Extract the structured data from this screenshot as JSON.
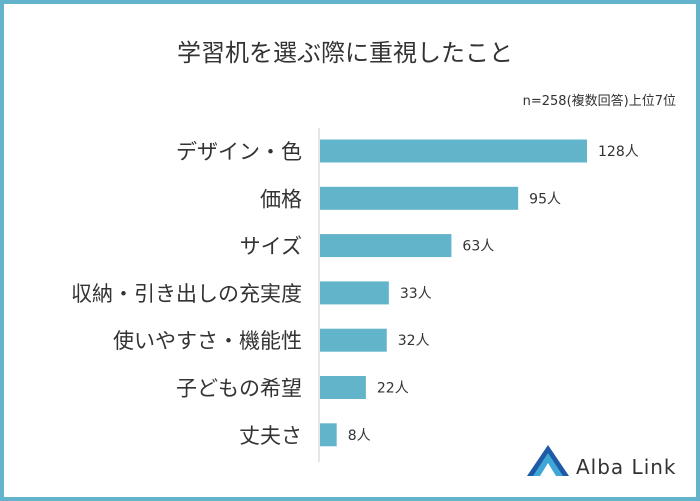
{
  "chart_data": {
    "type": "bar",
    "orientation": "horizontal",
    "title": "学習机を選ぶ際に重視したこと",
    "subtitle": "n=258(複数回答)上位7位",
    "categories": [
      "デザイン・色",
      "価格",
      "サイズ",
      "収納・引き出しの充実度",
      "使いやすさ・機能性",
      "子どもの希望",
      "丈夫さ"
    ],
    "values": [
      128,
      95,
      63,
      33,
      32,
      22,
      8
    ],
    "value_suffix": "人",
    "xlim": [
      0,
      140
    ],
    "grid": false,
    "bar_color": "#62b4cb"
  },
  "brand": {
    "name": "Alba Link",
    "logo_colors": [
      "#1f5aa6",
      "#3fa7d6"
    ]
  },
  "colors": {
    "border": "#63b3cc",
    "axis": "#cccccc",
    "text": "#333333"
  }
}
